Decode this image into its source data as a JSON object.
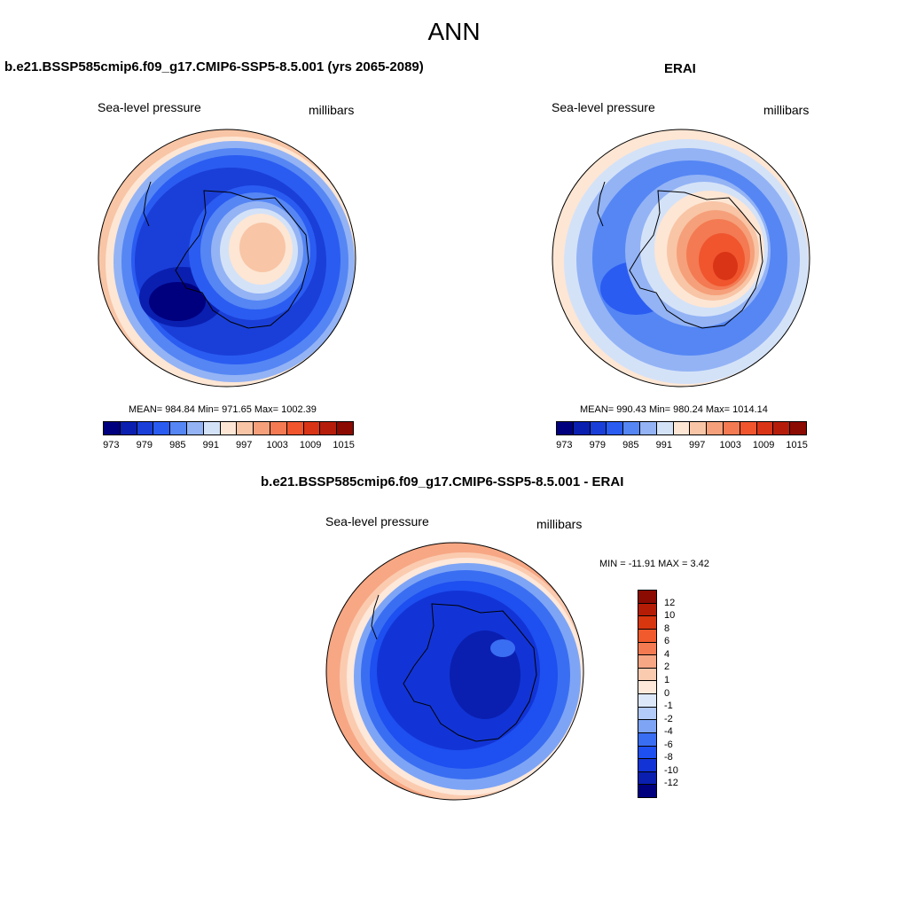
{
  "page_title": "ANN",
  "panel_model": {
    "title": "b.e21.BSSP585cmip6.f09_g17.CMIP6-SSP5-8.5.001 (yrs 2065-2089)",
    "variable": "Sea-level pressure",
    "units": "millibars",
    "stats": "MEAN= 984.84  Min= 971.65  Max= 1002.39"
  },
  "panel_obs": {
    "title": "ERAI",
    "variable": "Sea-level pressure",
    "units": "millibars",
    "stats": "MEAN= 990.43  Min= 980.24  Max= 1014.14"
  },
  "panel_diff": {
    "title": "b.e21.BSSP585cmip6.f09_g17.CMIP6-SSP5-8.5.001 - ERAI",
    "variable": "Sea-level pressure",
    "units": "millibars",
    "stats": "MIN = -11.91 MAX =   3.42"
  },
  "abs_colorbar": {
    "colors": [
      "#00007f",
      "#0a1fb0",
      "#1a3fd8",
      "#2a5cf2",
      "#5586f4",
      "#93b3f5",
      "#d4e2f8",
      "#fde6d4",
      "#f8c5a6",
      "#f5a07a",
      "#f37a52",
      "#f0552e",
      "#d93416",
      "#b51d0a",
      "#8b0a02"
    ],
    "tick_labels": [
      "973",
      "979",
      "985",
      "991",
      "997",
      "1003",
      "1009",
      "1015"
    ]
  },
  "diff_colorbar": {
    "colors": [
      "#00007f",
      "#0a1fb0",
      "#1234d6",
      "#1e4ff0",
      "#3a6ef2",
      "#7ea5f5",
      "#b3cbf8",
      "#dce8fa",
      "#fde8da",
      "#fbcbb0",
      "#f7a784",
      "#f47a52",
      "#f05a2c",
      "#d8360f",
      "#b51c05",
      "#8b0a02"
    ],
    "tick_labels": [
      "12",
      "10",
      "8",
      "6",
      "4",
      "2",
      "1",
      "0",
      "-1",
      "-2",
      "-4",
      "-6",
      "-8",
      "-10",
      "-12"
    ]
  }
}
